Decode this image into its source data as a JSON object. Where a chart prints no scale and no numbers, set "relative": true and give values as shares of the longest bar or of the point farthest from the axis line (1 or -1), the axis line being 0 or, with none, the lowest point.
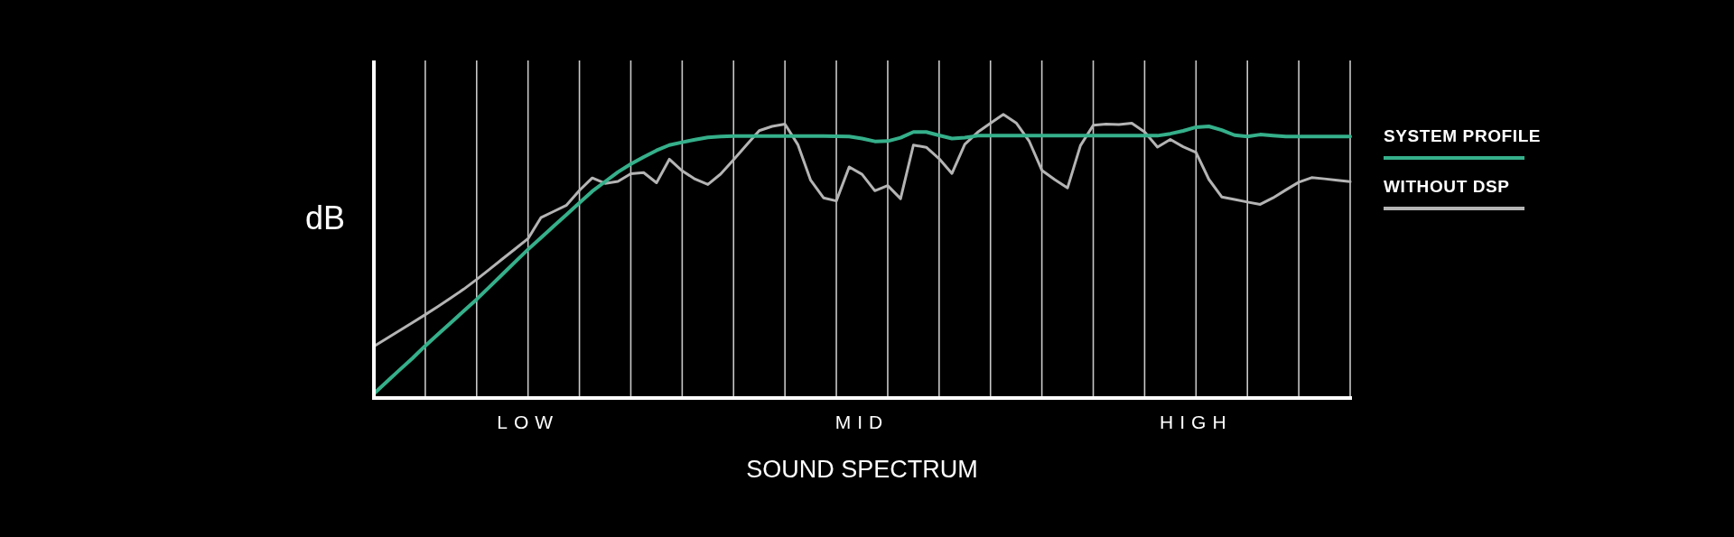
{
  "chart_data": {
    "type": "line",
    "relative": true,
    "ylabel": "dB",
    "xlabel": "SOUND SPECTRUM",
    "categories": [
      null,
      null,
      null,
      null,
      null,
      null,
      null,
      null,
      null,
      null,
      null,
      null,
      "LOW",
      null,
      null,
      null,
      null,
      null,
      null,
      null,
      null,
      null,
      null,
      null,
      null,
      null,
      null,
      null,
      null,
      null,
      null,
      null,
      null,
      null,
      null,
      null,
      null,
      null,
      "MID",
      null,
      null,
      null,
      null,
      null,
      null,
      null,
      null,
      null,
      null,
      null,
      null,
      null,
      null,
      null,
      null,
      null,
      null,
      null,
      null,
      null,
      null,
      null,
      null,
      null,
      "HIGH",
      null,
      null,
      null,
      null,
      null,
      null,
      null,
      null,
      null,
      null,
      null,
      null
    ],
    "grid": "x",
    "legend": "right",
    "line_style": "solid",
    "marker": "none",
    "series": [
      {
        "name": "SYSTEM PROFILE",
        "color": "#35b08a",
        "values": [
          0.015,
          0.057,
          0.099,
          0.14,
          0.184,
          0.225,
          0.266,
          0.307,
          0.348,
          0.392,
          0.436,
          0.48,
          0.524,
          0.565,
          0.606,
          0.647,
          0.688,
          0.729,
          0.763,
          0.797,
          0.825,
          0.85,
          0.873,
          0.892,
          0.902,
          0.911,
          0.919,
          0.922,
          0.924,
          0.924,
          0.924,
          0.924,
          0.924,
          0.924,
          0.924,
          0.924,
          0.923,
          0.922,
          0.915,
          0.905,
          0.906,
          0.918,
          0.938,
          0.938,
          0.926,
          0.915,
          0.918,
          0.925,
          0.925,
          0.925,
          0.925,
          0.925,
          0.925,
          0.925,
          0.925,
          0.925,
          0.925,
          0.925,
          0.925,
          0.925,
          0.925,
          0.925,
          0.932,
          0.942,
          0.955,
          0.958,
          0.945,
          0.927,
          0.922,
          0.929,
          0.925,
          0.922,
          0.922,
          0.922,
          0.922,
          0.922,
          0.922
        ]
      },
      {
        "name": "WITHOUT DSP",
        "color": "#b4b4b4",
        "values": [
          0.182,
          0.21,
          0.238,
          0.266,
          0.294,
          0.323,
          0.353,
          0.384,
          0.418,
          0.454,
          0.49,
          0.526,
          0.562,
          0.636,
          0.658,
          0.68,
          0.732,
          0.776,
          0.757,
          0.764,
          0.791,
          0.795,
          0.759,
          0.842,
          0.801,
          0.772,
          0.753,
          0.79,
          0.84,
          0.892,
          0.943,
          0.958,
          0.966,
          0.894,
          0.768,
          0.706,
          0.695,
          0.815,
          0.789,
          0.731,
          0.749,
          0.703,
          0.892,
          0.884,
          0.844,
          0.792,
          0.895,
          0.937,
          0.969,
          1.0,
          0.97,
          0.907,
          0.803,
          0.77,
          0.741,
          0.89,
          0.962,
          0.966,
          0.964,
          0.969,
          0.938,
          0.885,
          0.912,
          0.886,
          0.866,
          0.771,
          0.709,
          0.7,
          0.691,
          0.683,
          0.706,
          0.734,
          0.761,
          0.777,
          0.773,
          0.768,
          0.763
        ]
      }
    ]
  }
}
